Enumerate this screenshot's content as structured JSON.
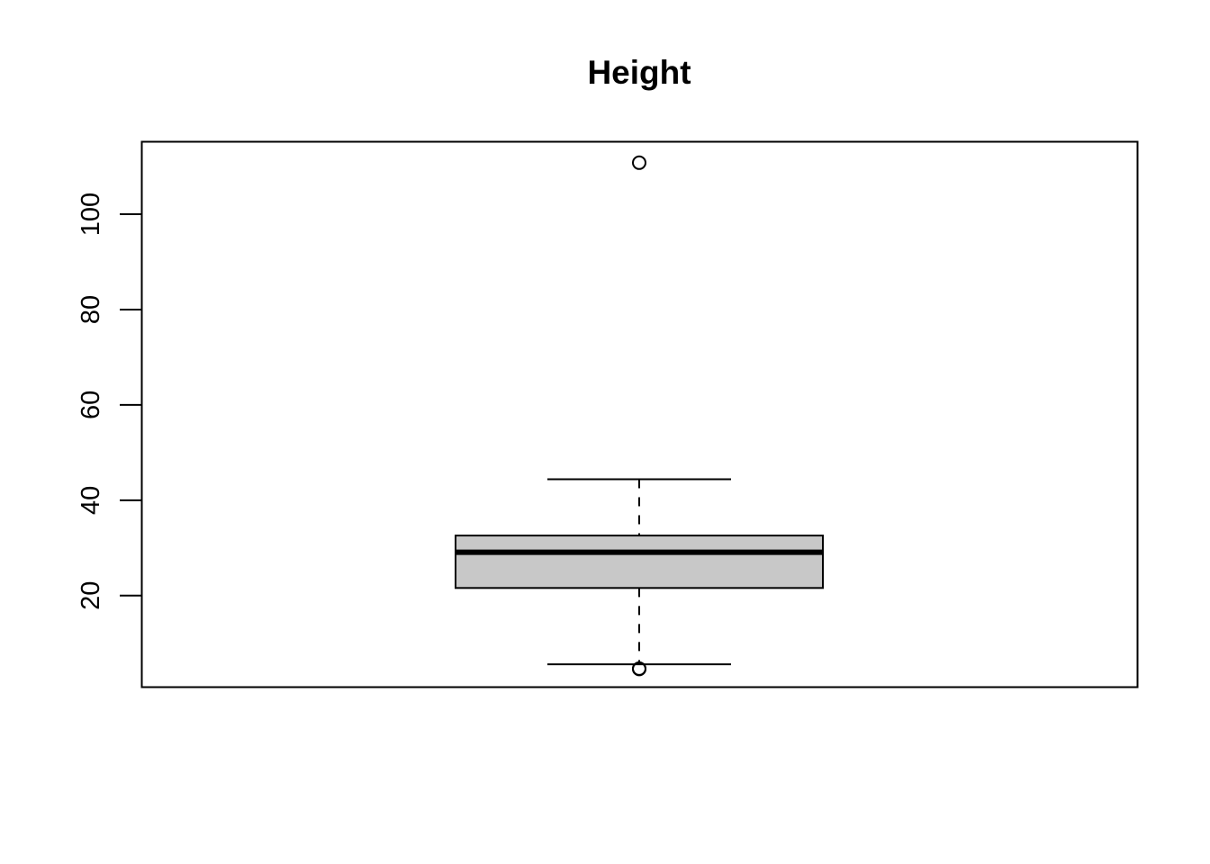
{
  "chart_data": {
    "type": "boxplot",
    "title": "Height",
    "xlabel": "",
    "ylabel": "",
    "ylim": [
      0.8,
      115.2
    ],
    "yticks": [
      20,
      40,
      60,
      80,
      100
    ],
    "ytick_labels": [
      "20",
      "40",
      "60",
      "80",
      "100"
    ],
    "grid": false,
    "box": {
      "whisker_low": 5.6,
      "q1": 21.6,
      "median": 29.1,
      "q3": 32.6,
      "whisker_high": 44.4,
      "outliers": [
        4.6,
        4.7,
        110.8
      ]
    },
    "colors": {
      "box_fill": "#c8c8c8",
      "line": "#000000",
      "background": "#ffffff"
    }
  }
}
